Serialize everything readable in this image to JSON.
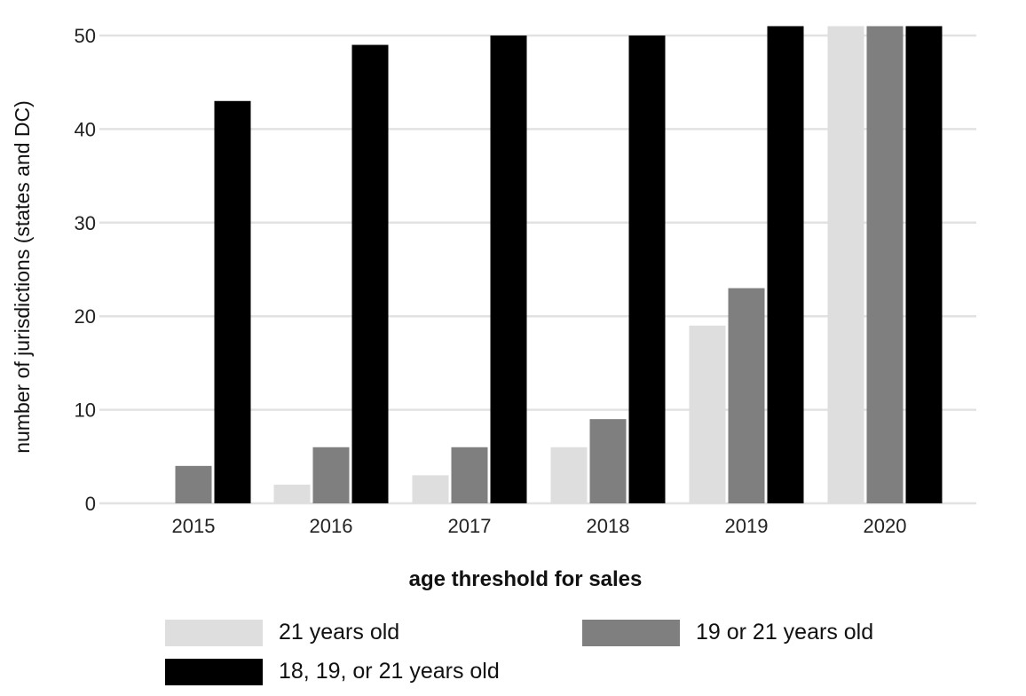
{
  "chart_data": {
    "type": "bar",
    "categories": [
      "2015",
      "2016",
      "2017",
      "2018",
      "2019",
      "2020"
    ],
    "series": [
      {
        "name": "21 years old",
        "color": "#dedede",
        "values": [
          0,
          2,
          3,
          6,
          19,
          51
        ]
      },
      {
        "name": "19 or 21 years old",
        "color": "#7f7f7f",
        "values": [
          4,
          6,
          6,
          9,
          23,
          51
        ]
      },
      {
        "name": "18, 19, or 21 years old",
        "color": "#000000",
        "values": [
          43,
          49,
          50,
          50,
          51,
          51
        ]
      }
    ],
    "ylabel": "number of jurisdictions (states and DC)",
    "legend_title": "age threshold for sales",
    "ylim": [
      0,
      51
    ],
    "yticks": [
      0,
      10,
      20,
      30,
      40,
      50
    ],
    "grid": true,
    "legend_position": "bottom"
  }
}
